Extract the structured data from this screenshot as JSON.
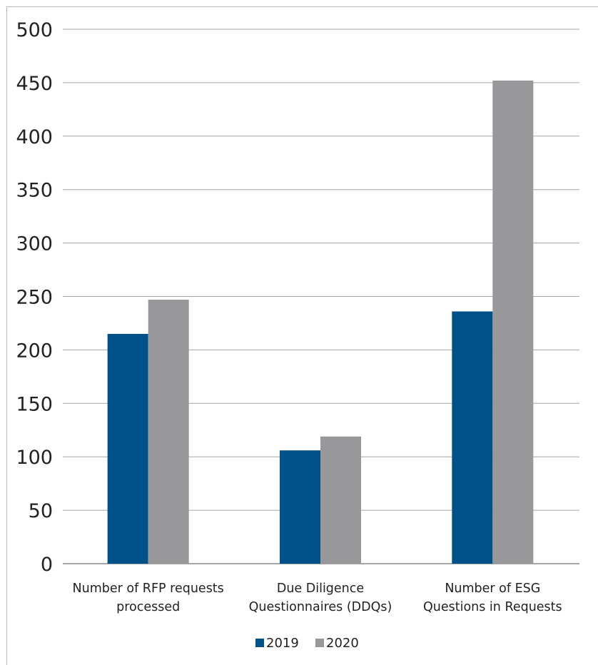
{
  "chart_data": {
    "type": "bar",
    "categories": [
      [
        "Number of RFP requests",
        "processed"
      ],
      [
        "Due Diligence",
        "Questionnaires (DDQs)"
      ],
      [
        "Number of ESG",
        "Questions in Requests"
      ]
    ],
    "series": [
      {
        "name": "2019",
        "values": [
          215,
          106,
          236
        ],
        "color": "#00508a"
      },
      {
        "name": "2020",
        "values": [
          247,
          119,
          452
        ],
        "color": "#98989b"
      }
    ],
    "ylim": [
      0,
      500
    ],
    "yticks": [
      0,
      50,
      100,
      150,
      200,
      250,
      300,
      350,
      400,
      450,
      500
    ],
    "grid": true,
    "legend": "bottom-center",
    "xlabel": "",
    "ylabel": "",
    "title": ""
  }
}
